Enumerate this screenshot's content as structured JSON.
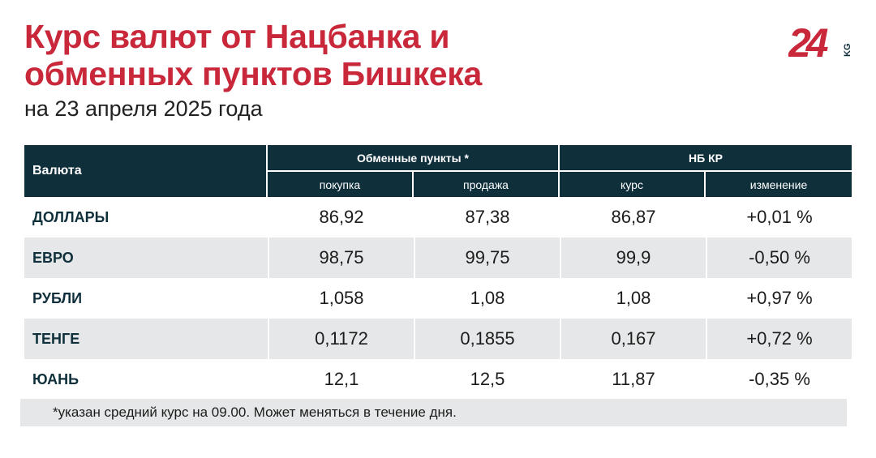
{
  "header": {
    "title_line1": "Курс валют от Нацбанка и",
    "title_line2": "обменных пунктов Бишкека",
    "subtitle": "на 23 апреля 2025 года"
  },
  "logo": {
    "number": "24",
    "suffix": "KG",
    "color": "#c8283a"
  },
  "table": {
    "col_currency": "Валюта",
    "group_exchange": "Обменные пункты *",
    "group_nbkr": "НБ КР",
    "sub_buy": "покупка",
    "sub_sell": "продажа",
    "sub_rate": "курс",
    "sub_change": "изменение",
    "rows": [
      {
        "currency": "ДОЛЛАРЫ",
        "buy": "86,92",
        "sell": "87,38",
        "rate": "86,87",
        "change": "+0,01 %"
      },
      {
        "currency": "ЕВРО",
        "buy": "98,75",
        "sell": "99,75",
        "rate": "99,9",
        "change": "-0,50 %"
      },
      {
        "currency": "РУБЛИ",
        "buy": "1,058",
        "sell": "1,08",
        "rate": "1,08",
        "change": "+0,97 %"
      },
      {
        "currency": "ТЕНГЕ",
        "buy": "0,1172",
        "sell": "0,1855",
        "rate": "0,167",
        "change": "+0,72 %"
      },
      {
        "currency": "ЮАНЬ",
        "buy": "12,1",
        "sell": "12,5",
        "rate": "11,87",
        "change": "-0,35 %"
      }
    ]
  },
  "footnote": "*указан средний курс на 09.00. Может меняться в течение дня.",
  "colors": {
    "title": "#c8283a",
    "header_bg": "#0f2f3b",
    "row_alt_bg": "#e6e7e8"
  }
}
